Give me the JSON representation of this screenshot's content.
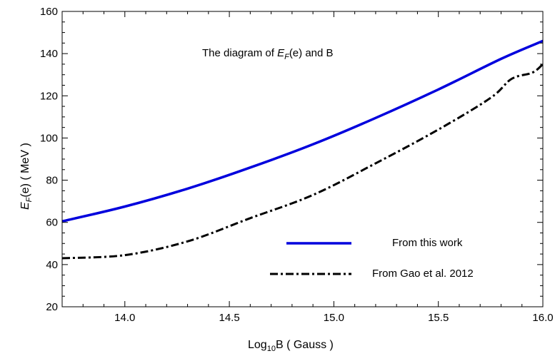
{
  "chart_data": {
    "type": "line",
    "title": "The diagram of E_F(e) and  B",
    "title_parts": {
      "prefix": "The diagram of ",
      "E": "E",
      "sub": "F",
      "suffix": "(e) and  B"
    },
    "xlabel": "Log10B  ( Gauss )",
    "xlabel_parts": {
      "base": "Log",
      "sub": "10",
      "rest": "B  ( Gauss )"
    },
    "ylabel": "E_F(e)  ( MeV )",
    "ylabel_parts": {
      "E": "E",
      "sub": "F",
      "rest": "(e)  ( MeV )"
    },
    "xlim": [
      13.7,
      16.0
    ],
    "ylim": [
      20,
      160
    ],
    "x_ticks": [
      "14.0",
      "14.5",
      "15.0",
      "15.5",
      "16.0"
    ],
    "y_ticks": [
      "20",
      "40",
      "60",
      "80",
      "100",
      "120",
      "140",
      "160"
    ],
    "grid": false,
    "legend_position": "bottom-right",
    "series": [
      {
        "name": "From this work",
        "color": "#0000dd",
        "style": "solid",
        "x": [
          13.7,
          14.0,
          14.3,
          14.6,
          14.9,
          15.2,
          15.5,
          15.8,
          16.0
        ],
        "y": [
          60.5,
          67.5,
          76,
          86,
          97,
          109.5,
          123,
          137.5,
          146
        ]
      },
      {
        "name": "From Gao et al. 2012",
        "color": "#000000",
        "style": "dashdot",
        "x": [
          13.7,
          14.0,
          14.3,
          14.6,
          14.9,
          15.2,
          15.5,
          15.75,
          15.85,
          15.95,
          16.0
        ],
        "y": [
          43,
          44.5,
          51,
          62,
          73,
          88,
          104,
          119,
          128,
          131,
          135
        ]
      }
    ]
  }
}
